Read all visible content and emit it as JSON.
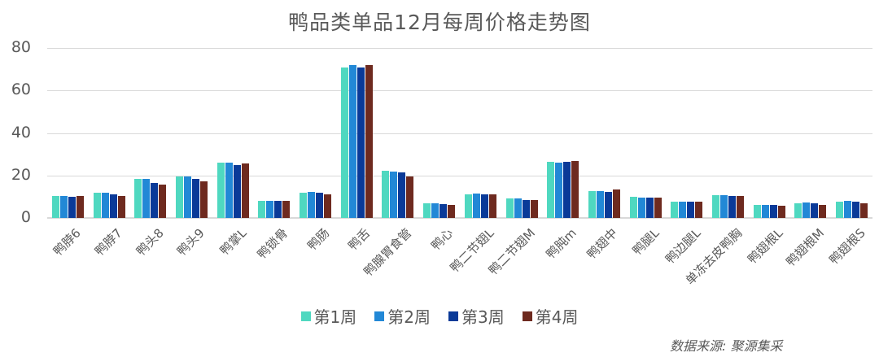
{
  "title": "鸭品类单品12月每周价格走势图",
  "source": "数据来源: 聚源集采",
  "colors": {
    "week1": "#4fd8c0",
    "week2": "#2288d6",
    "week3": "#0a3a98",
    "week4": "#6e2a1f",
    "grid": "#d9d9d9",
    "text": "#595959"
  },
  "legend": [
    {
      "label": "第1周",
      "color": "#4fd8c0"
    },
    {
      "label": "第2周",
      "color": "#2288d6"
    },
    {
      "label": "第3周",
      "color": "#0a3a98"
    },
    {
      "label": "第4周",
      "color": "#6e2a1f"
    }
  ],
  "y_ticks": [
    "0",
    "20",
    "40",
    "60",
    "80"
  ],
  "chart_data": {
    "type": "bar",
    "title": "鸭品类单品12月每周价格走势图",
    "xlabel": "",
    "ylabel": "",
    "ylim": [
      0,
      80
    ],
    "yticks": [
      0,
      20,
      40,
      60,
      80
    ],
    "grid": true,
    "legend_position": "bottom",
    "categories": [
      "鸭脖6",
      "鸭脖7",
      "鸭头8",
      "鸭头9",
      "鸭掌L",
      "鸭锁骨",
      "鸭肠",
      "鸭舌",
      "鸭腺胃食管",
      "鸭心",
      "鸭二节翅L",
      "鸭二节翅M",
      "鸭肫m",
      "鸭翅中",
      "鸭腿L",
      "鸭边腿L",
      "单冻去皮鸭胸",
      "鸭翅根L",
      "鸭翅根M",
      "鸭翅根S"
    ],
    "series": [
      {
        "name": "第1周",
        "values": [
          10.5,
          12,
          18.5,
          19.5,
          26.2,
          8.2,
          12,
          71,
          22.2,
          7,
          11.2,
          9,
          26.5,
          12.7,
          9.8,
          7.8,
          10.8,
          6.2,
          7,
          7.8
        ]
      },
      {
        "name": "第2周",
        "values": [
          10.3,
          11.8,
          18.5,
          19.5,
          26,
          8,
          12.2,
          72,
          22,
          6.8,
          11.3,
          9.2,
          26,
          12.5,
          9.6,
          7.8,
          10.8,
          6.2,
          7.2,
          8
        ]
      },
      {
        "name": "第3周",
        "values": [
          10,
          11,
          16.5,
          18.5,
          25,
          8,
          12,
          71,
          21.5,
          6.5,
          11.2,
          8.5,
          26.5,
          12.3,
          9.6,
          7.8,
          10.5,
          6.2,
          6.7,
          7.5
        ]
      },
      {
        "name": "第4周",
        "values": [
          10.5,
          10.5,
          15.8,
          17.2,
          25.5,
          8,
          11,
          72,
          19.5,
          6.2,
          11.2,
          8.5,
          26.8,
          13.5,
          9.6,
          7.8,
          10.5,
          5.8,
          6.2,
          7
        ]
      }
    ],
    "source": "数据来源: 聚源集采"
  }
}
